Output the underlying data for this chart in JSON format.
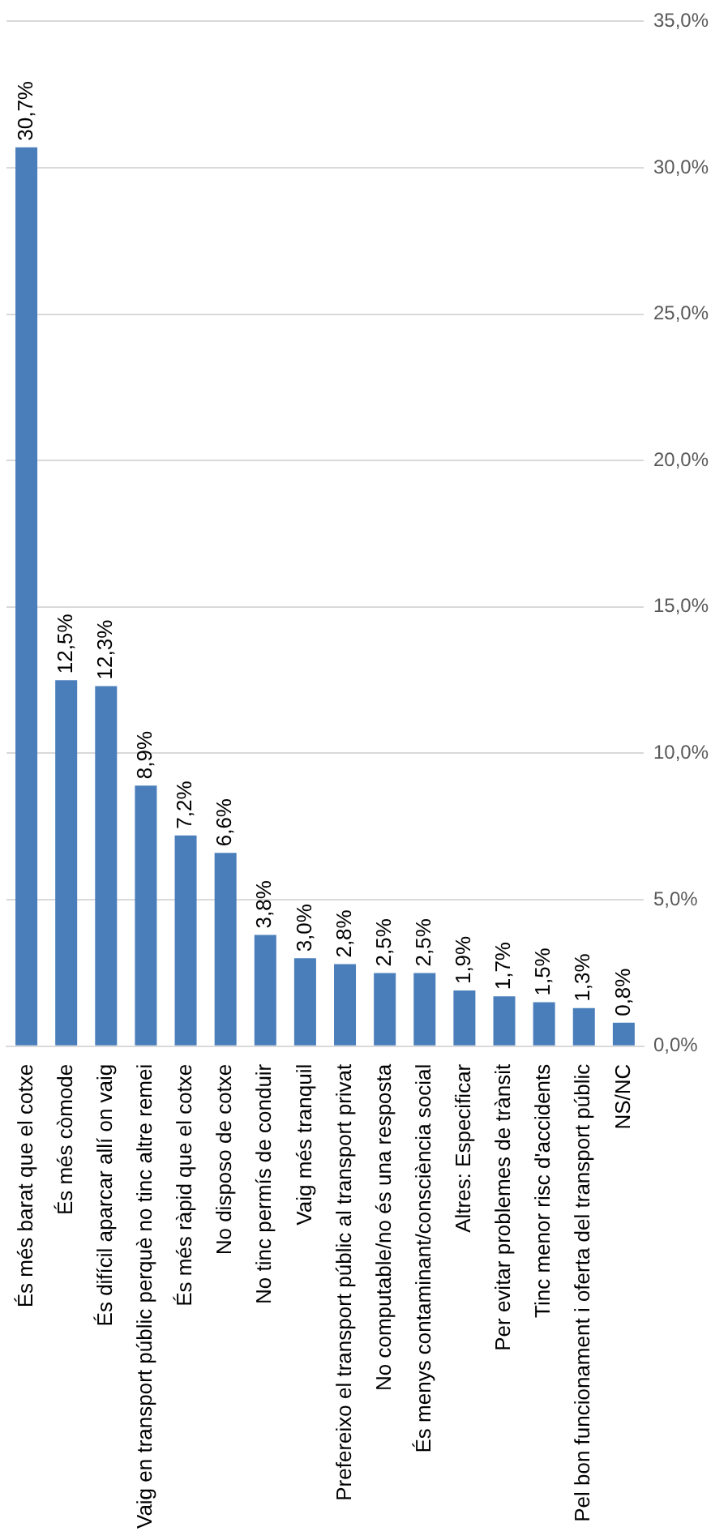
{
  "chart_data": {
    "type": "bar",
    "categories": [
      "És més barat que el cotxe",
      "És més còmode",
      "És difícil aparcar allí on vaig",
      "Vaig en transport públic perquè no tinc altre remei",
      "És més ràpid que el cotxe",
      "No disposo de cotxe",
      "No tinc permís de conduir",
      "Vaig més tranquil",
      "Prefereixo el transport públic al transport privat",
      "No computable/no és una resposta",
      "És menys contaminant/consciència social",
      "Altres: Especificar",
      "Per evitar problemes de trànsit",
      "Tinc menor risc d'accidents",
      "Pel bon funcionament i oferta del transport públic",
      "NS/NC"
    ],
    "values": [
      30.7,
      12.5,
      12.3,
      8.9,
      7.2,
      6.6,
      3.8,
      3.0,
      2.8,
      2.5,
      2.5,
      1.9,
      1.7,
      1.5,
      1.3,
      0.8
    ],
    "value_labels": [
      "30,7%",
      "12,5%",
      "12,3%",
      "8,9%",
      "7,2%",
      "6,6%",
      "3,8%",
      "3,0%",
      "2,8%",
      "2,5%",
      "2,5%",
      "1,9%",
      "1,7%",
      "1,5%",
      "1,3%",
      "0,8%"
    ],
    "color": "#4a7ebb",
    "ylim": [
      0,
      35
    ],
    "yticks": [
      {
        "value": 0,
        "label": "0,0%"
      },
      {
        "value": 5,
        "label": "5,0%"
      },
      {
        "value": 10,
        "label": "10,0%"
      },
      {
        "value": 15,
        "label": "15,0%"
      },
      {
        "value": 20,
        "label": "20,0%"
      },
      {
        "value": 25,
        "label": "25,0%"
      },
      {
        "value": 30,
        "label": "30,0%"
      },
      {
        "value": 35,
        "label": "35,0%"
      }
    ],
    "grid": "y"
  }
}
